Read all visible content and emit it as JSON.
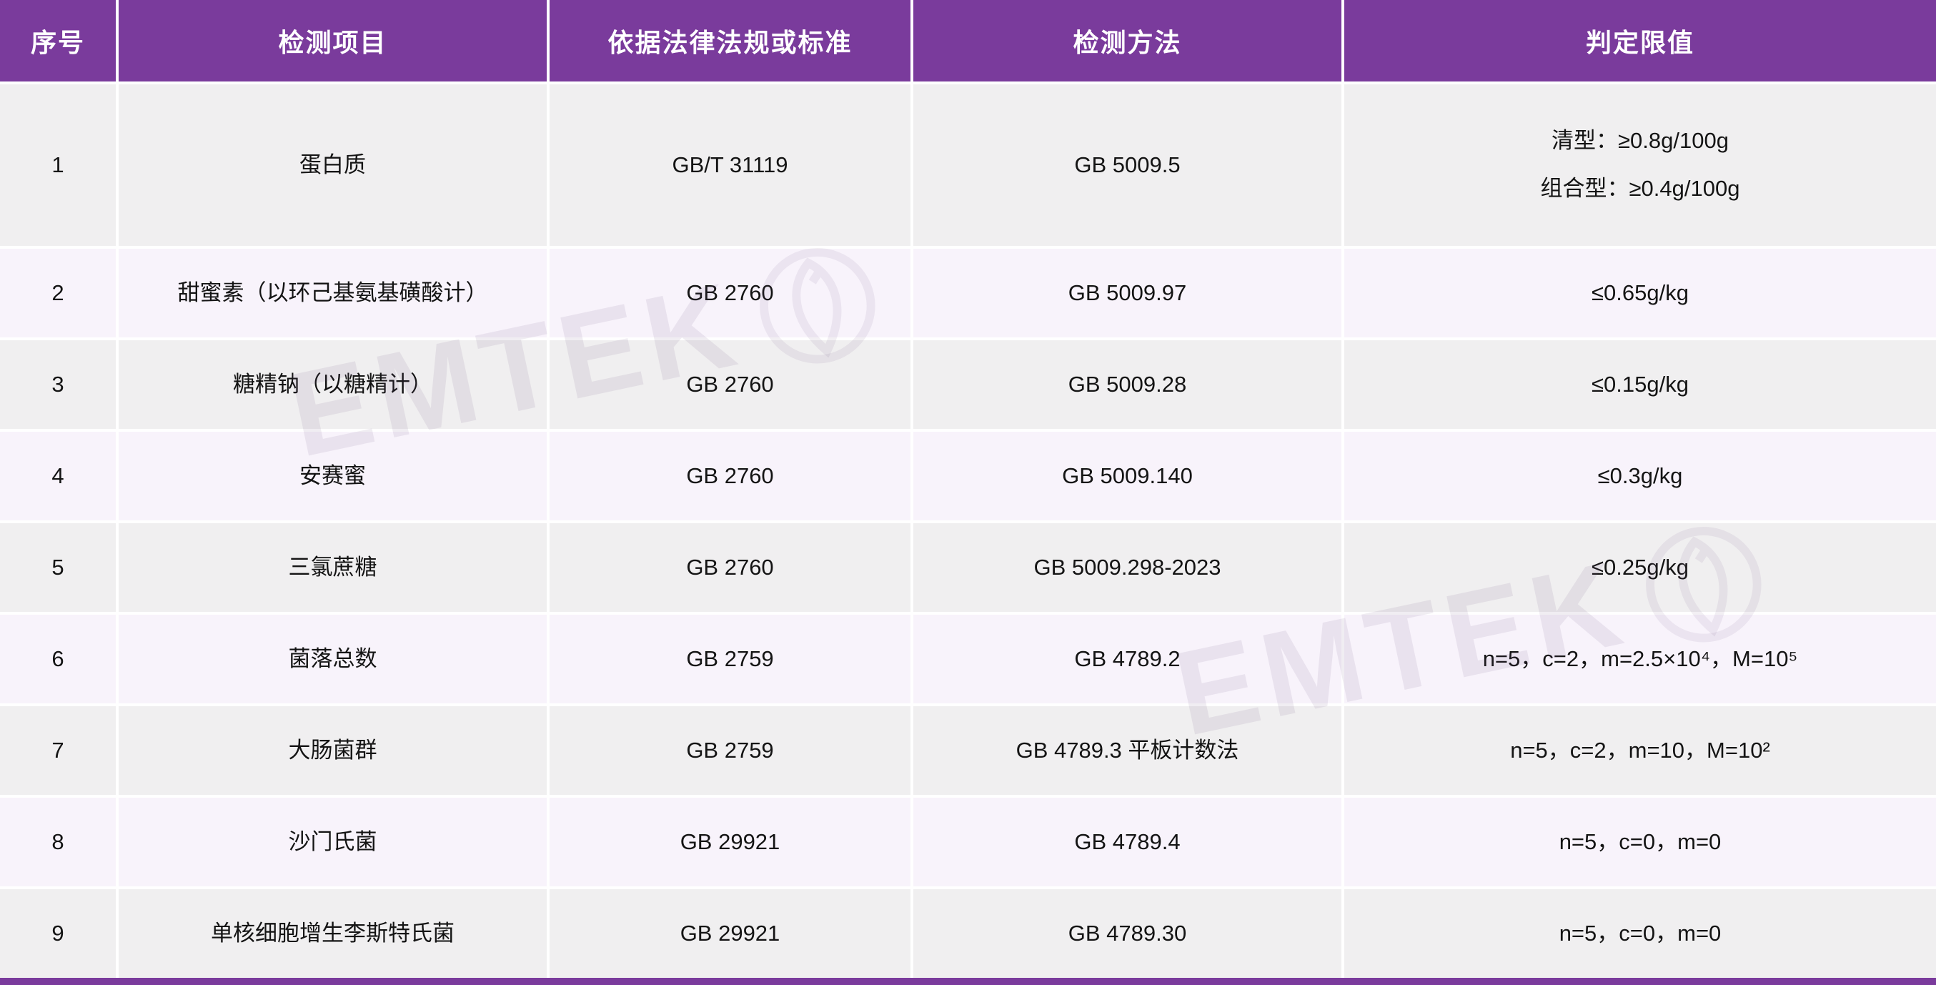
{
  "table": {
    "columns": [
      "序号",
      "检测项目",
      "依据法律法规或标准",
      "检测方法",
      "判定限值"
    ],
    "rows": [
      {
        "no": "1",
        "item": "蛋白质",
        "standard": "GB/T 31119",
        "method": "GB 5009.5",
        "limit": "清型：≥0.8g/100g\n组合型：≥0.4g/100g"
      },
      {
        "no": "2",
        "item": "甜蜜素（以环己基氨基磺酸计）",
        "standard": "GB 2760",
        "method": "GB 5009.97",
        "limit": "≤0.65g/kg"
      },
      {
        "no": "3",
        "item": "糖精钠（以糖精计）",
        "standard": "GB 2760",
        "method": "GB 5009.28",
        "limit": "≤0.15g/kg"
      },
      {
        "no": "4",
        "item": "安赛蜜",
        "standard": "GB 2760",
        "method": "GB 5009.140",
        "limit": "≤0.3g/kg"
      },
      {
        "no": "5",
        "item": "三氯蔗糖",
        "standard": "GB 2760",
        "method": "GB 5009.298-2023",
        "limit": "≤0.25g/kg"
      },
      {
        "no": "6",
        "item": "菌落总数",
        "standard": "GB 2759",
        "method": "GB 4789.2",
        "limit": "n=5，c=2，m=2.5×10⁴，M=10⁵"
      },
      {
        "no": "7",
        "item": "大肠菌群",
        "standard": "GB 2759",
        "method": "GB 4789.3  平板计数法",
        "limit": "n=5，c=2，m=10，M=10²"
      },
      {
        "no": "8",
        "item": "沙门氏菌",
        "standard": "GB 29921",
        "method": "GB 4789.4",
        "limit": "n=5，c=0，m=0"
      },
      {
        "no": "9",
        "item": "单核细胞增生李斯特氏菌",
        "standard": "GB 29921",
        "method": "GB 4789.30",
        "limit": "n=5，c=0，m=0"
      }
    ]
  },
  "watermark": {
    "text": "EMTEK"
  },
  "colors": {
    "header_purple": "#7a3b9c",
    "row_gray": "#f0eff0",
    "row_lavender": "#f8f3fb",
    "header_text": "#ffffff",
    "body_text": "#141414"
  }
}
